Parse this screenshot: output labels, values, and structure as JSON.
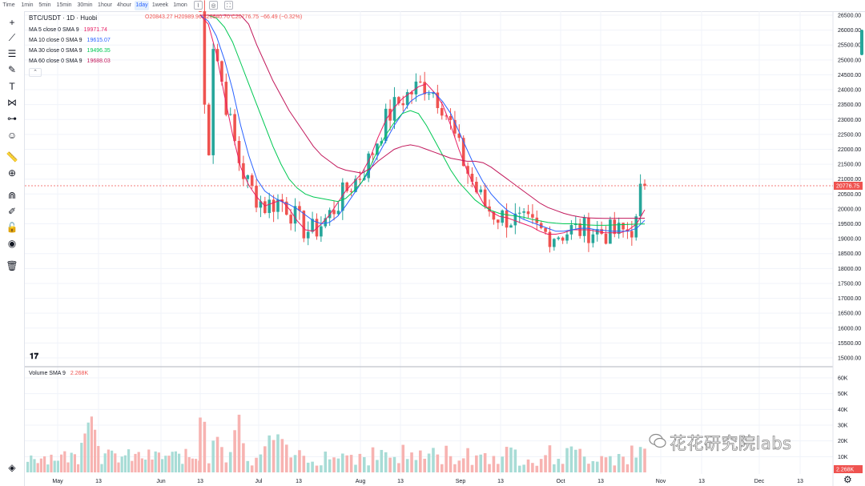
{
  "toolbar_top": {
    "timeframes": [
      "Time",
      "1min",
      "5min",
      "15min",
      "30min",
      "1hour",
      "4hour",
      "1day",
      "1week",
      "1mon"
    ],
    "active": "1day"
  },
  "legend": {
    "title": "BTC/USDT · 1D · Huobi",
    "ohlc": "O20843.27 H20989.96 L20640.70 C20776.75 −66.49 (−0.32%)",
    "ma": [
      {
        "label": "MA 5 close 0 SMA 9",
        "value": "19971.74",
        "color": "#e91e63"
      },
      {
        "label": "MA 10 close 0 SMA 9",
        "value": "19615.07",
        "color": "#2962ff"
      },
      {
        "label": "MA 30 close 0 SMA 9",
        "value": "19496.35",
        "color": "#00c853"
      },
      {
        "label": "MA 60 close 0 SMA 9",
        "value": "19688.03",
        "color": "#c2185b"
      }
    ],
    "volume_label": "Volume SMA 9",
    "volume_value": "2.268K"
  },
  "price_axis": {
    "ticks": [
      "26500.00",
      "26000.00",
      "25500.00",
      "25000.00",
      "24500.00",
      "24000.00",
      "23500.00",
      "23000.00",
      "22500.00",
      "22000.00",
      "21500.00",
      "21000.00",
      "20500.00",
      "20000.00",
      "19500.00",
      "19000.00",
      "18500.00",
      "18000.00",
      "17500.00",
      "17000.00",
      "16500.00",
      "16000.00",
      "15500.00",
      "15000.00"
    ],
    "last_price": "20776.75"
  },
  "volume_axis": {
    "ticks": [
      "60K",
      "50K",
      "40K",
      "30K",
      "20K",
      "10K"
    ],
    "last_volume": "2.268K"
  },
  "time_axis": [
    "May",
    "13",
    "Jun",
    "13",
    "Jul",
    "13",
    "Aug",
    "13",
    "Sep",
    "13",
    "Oct",
    "13",
    "Nov",
    "13",
    "Dec",
    "13"
  ],
  "watermark": "花花研究院labs",
  "colors": {
    "up": "#26a69a",
    "down": "#ef5350",
    "grid": "#f0f3fa"
  },
  "icons": [
    "crosshair-icon",
    "trend-line-icon",
    "fib-icon",
    "brush-icon",
    "text-icon",
    "pattern-icon",
    "measure-icon",
    "emoji-icon",
    "ruler-icon",
    "zoom-in-icon",
    "magnet-icon",
    "lock-drawings-icon",
    "lock-icon",
    "eye-icon",
    "trash-icon",
    "layers-icon",
    "settings-icon",
    "tradingview-logo-icon"
  ],
  "chart_data": {
    "type": "candlestick",
    "title": "BTC/USDT · 1D · Huobi",
    "ylim": [
      15000,
      26500
    ],
    "x_ticks": [
      "May",
      "13",
      "Jun",
      "13",
      "Jul",
      "13",
      "Aug",
      "13",
      "Sep",
      "13",
      "Oct",
      "13",
      "Nov",
      "13",
      "Dec",
      "13"
    ],
    "series": [
      {
        "name": "MA 5 close 0 SMA 9",
        "values": [
          26500,
          26200,
          25200,
          23800,
          22500,
          21400,
          20800,
          20400,
          20100,
          20200,
          20300,
          20000,
          19600,
          19300,
          19250,
          19500,
          19800,
          20200,
          20600,
          20900,
          21200,
          21700,
          22400,
          23000,
          23400,
          23700,
          23900,
          24100,
          24200,
          23900,
          23500,
          22800,
          22000,
          21300,
          20700,
          20200,
          19900,
          19750,
          19700,
          19600,
          19500,
          19400,
          19250,
          19150,
          19150,
          19200,
          19300,
          19300,
          19300,
          19250,
          19200,
          19200,
          19200,
          19300,
          19500,
          19971.74
        ]
      },
      {
        "name": "MA 10 close 0 SMA 9",
        "values": [
          26500,
          26300,
          25800,
          25000,
          24000,
          22800,
          21800,
          21000,
          20600,
          20400,
          20250,
          20150,
          20000,
          19800,
          19600,
          19500,
          19550,
          19750,
          20100,
          20500,
          20900,
          21300,
          21800,
          22300,
          22800,
          23200,
          23600,
          23800,
          23900,
          23900,
          23600,
          23200,
          22600,
          22000,
          21400,
          20900,
          20500,
          20200,
          19950,
          19800,
          19650,
          19550,
          19450,
          19350,
          19250,
          19250,
          19300,
          19350,
          19350,
          19300,
          19280,
          19250,
          19250,
          19250,
          19350,
          19615.07
        ]
      },
      {
        "name": "MA 30 close 0 SMA 9",
        "values": [
          26500,
          26500,
          26400,
          26100,
          25600,
          24900,
          24200,
          23500,
          22800,
          22100,
          21500,
          21000,
          20700,
          20500,
          20400,
          20350,
          20300,
          20250,
          20350,
          20600,
          20900,
          21400,
          22000,
          22500,
          22900,
          23200,
          23300,
          23200,
          22800,
          22300,
          21800,
          21300,
          20900,
          20600,
          20300,
          20100,
          19950,
          19850,
          19800,
          19760,
          19720,
          19650,
          19600,
          19550,
          19520,
          19500,
          19500,
          19480,
          19460,
          19450,
          19450,
          19460,
          19470,
          19480,
          19490,
          19496.35
        ]
      },
      {
        "name": "MA 60 close 0 SMA 9",
        "values": [
          26500,
          26500,
          26500,
          26500,
          26500,
          26500,
          26200,
          25500,
          24900,
          24300,
          23800,
          23300,
          22900,
          22500,
          22100,
          21800,
          21600,
          21400,
          21300,
          21250,
          21200,
          21350,
          21600,
          21800,
          22000,
          22100,
          22150,
          22100,
          22000,
          21900,
          21800,
          21700,
          21650,
          21600,
          21600,
          21550,
          21400,
          21200,
          21000,
          20800,
          20600,
          20400,
          20200,
          20050,
          19950,
          19850,
          19780,
          19730,
          19700,
          19690,
          19680,
          19680,
          19685,
          19686,
          19687,
          19688.03
        ]
      }
    ]
  }
}
